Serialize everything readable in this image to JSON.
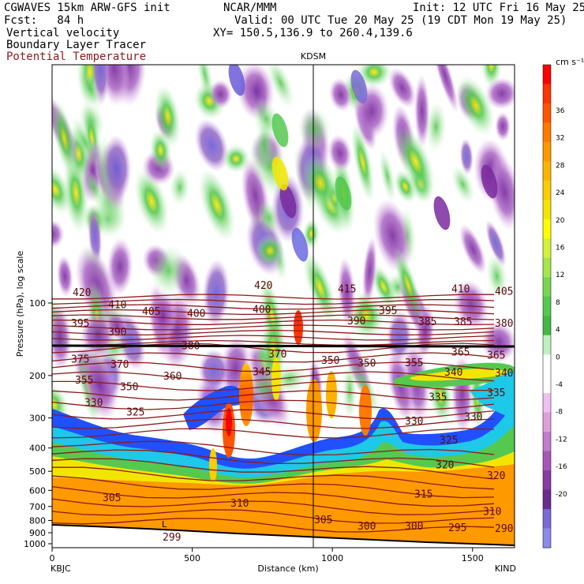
{
  "header": {
    "left_line1": "CGWAVES 15km ARW-GFS init",
    "left_line2": "Fcst:   84 h",
    "center_line1": "NCAR/MMM",
    "center_line2": "Valid: 00 UTC Tue 20 May 25 (19 CDT Mon 19 May 25)",
    "center_line3": "XY= 150.5,136.9 to 260.4,139.6",
    "right_line1": "Init: 12 UTC Fri 16 May 25",
    "field1": "Vertical velocity",
    "field2": "Boundary Layer Tracer",
    "field3": "Potential Temperature",
    "field3_color": "#8b1a1a"
  },
  "chart_data": {
    "type": "heatmap",
    "title": "",
    "xlabel": "Distance (km)",
    "ylabel": "Pressure (hPa), log scale",
    "xlim": [
      0,
      1650
    ],
    "x_ticks": [
      0,
      500,
      1000,
      1500
    ],
    "y_ticks": [
      100,
      200,
      300,
      400,
      500,
      600,
      700,
      800,
      900,
      1000
    ],
    "y_scale": "log",
    "endpoints": {
      "left": "KBJC",
      "right": "KIND"
    },
    "marker": {
      "label": "KDSM",
      "x": 930
    },
    "colorbar": {
      "unit": "cm s⁻¹",
      "tick_labels": [
        36,
        32,
        28,
        24,
        20,
        16,
        12,
        8,
        4,
        0,
        -4,
        -8,
        -12,
        -16,
        -20
      ],
      "colors": [
        "#ff0000",
        "#ff3300",
        "#ff5500",
        "#ff7a00",
        "#ff9900",
        "#ffb300",
        "#ffcc00",
        "#f2e600",
        "#ffff00",
        "#d4f03c",
        "#a6e64d",
        "#7ad650",
        "#55c850",
        "#44b844",
        "#bff0bf",
        "#ffffff",
        "#ffffff",
        "#efc0ef",
        "#dda0dd",
        "#c37bcc",
        "#a855b8",
        "#8a3aa0",
        "#6a2a90",
        "#7a6ad8",
        "#8a8ae8"
      ]
    },
    "theta_labels": [
      {
        "v": "420",
        "x": 92,
        "p": 90
      },
      {
        "v": "410",
        "x": 137,
        "p": 101
      },
      {
        "v": "405",
        "x": 180,
        "p": 108
      },
      {
        "v": "400",
        "x": 237,
        "p": 110
      },
      {
        "v": "420",
        "x": 322,
        "p": 84
      },
      {
        "v": "400",
        "x": 320,
        "p": 106
      },
      {
        "v": "415",
        "x": 428,
        "p": 87
      },
      {
        "v": "410",
        "x": 572,
        "p": 87
      },
      {
        "v": "405",
        "x": 627,
        "p": 89
      },
      {
        "v": "395",
        "x": 90,
        "p": 121
      },
      {
        "v": "390",
        "x": 137,
        "p": 131
      },
      {
        "v": "395",
        "x": 480,
        "p": 107
      },
      {
        "v": "390",
        "x": 440,
        "p": 118
      },
      {
        "v": "385",
        "x": 530,
        "p": 119
      },
      {
        "v": "385",
        "x": 575,
        "p": 119
      },
      {
        "v": "380",
        "x": 627,
        "p": 121
      },
      {
        "v": "380",
        "x": 230,
        "p": 150
      },
      {
        "v": "370",
        "x": 340,
        "p": 162
      },
      {
        "v": "375",
        "x": 90,
        "p": 170
      },
      {
        "v": "370",
        "x": 140,
        "p": 179
      },
      {
        "v": "360",
        "x": 207,
        "p": 200
      },
      {
        "v": "350",
        "x": 407,
        "p": 172
      },
      {
        "v": "350",
        "x": 453,
        "p": 177
      },
      {
        "v": "355",
        "x": 513,
        "p": 176
      },
      {
        "v": "365",
        "x": 572,
        "p": 159
      },
      {
        "v": "365",
        "x": 617,
        "p": 164
      },
      {
        "v": "345",
        "x": 320,
        "p": 192
      },
      {
        "v": "355",
        "x": 95,
        "p": 208
      },
      {
        "v": "350",
        "x": 152,
        "p": 222
      },
      {
        "v": "340",
        "x": 563,
        "p": 193
      },
      {
        "v": "340",
        "x": 627,
        "p": 194
      },
      {
        "v": "335",
        "x": 543,
        "p": 245
      },
      {
        "v": "335",
        "x": 617,
        "p": 235
      },
      {
        "v": "330",
        "x": 107,
        "p": 258
      },
      {
        "v": "325",
        "x": 160,
        "p": 282
      },
      {
        "v": "330",
        "x": 513,
        "p": 308
      },
      {
        "v": "330",
        "x": 588,
        "p": 296
      },
      {
        "v": "325",
        "x": 557,
        "p": 369
      },
      {
        "v": "320",
        "x": 552,
        "p": 468
      },
      {
        "v": "320",
        "x": 617,
        "p": 519
      },
      {
        "v": "315",
        "x": 525,
        "p": 620
      },
      {
        "v": "310",
        "x": 292,
        "p": 675
      },
      {
        "v": "310",
        "x": 612,
        "p": 730
      },
      {
        "v": "305",
        "x": 130,
        "p": 640
      },
      {
        "v": "305",
        "x": 398,
        "p": 790
      },
      {
        "v": "300",
        "x": 453,
        "p": 840
      },
      {
        "v": "300",
        "x": 513,
        "p": 840
      },
      {
        "v": "295",
        "x": 568,
        "p": 855
      },
      {
        "v": "290",
        "x": 627,
        "p": 860
      },
      {
        "v": "299",
        "x": 206,
        "p": 935
      }
    ],
    "tracer_low_label": "L"
  }
}
